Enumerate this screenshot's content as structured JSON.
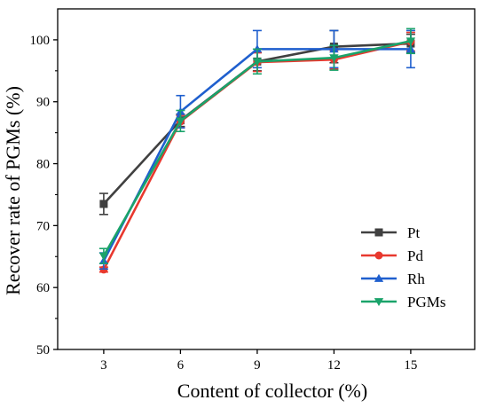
{
  "chart_data": {
    "type": "line",
    "title": "",
    "xlabel": "Content of collector (%)",
    "ylabel": "Recover rate of PGMs (%)",
    "x": [
      3,
      6,
      9,
      12,
      15
    ],
    "x_ticks": [
      "3",
      "6",
      "9",
      "12",
      "15"
    ],
    "y_ticks": [
      "50",
      "60",
      "70",
      "80",
      "90",
      "100"
    ],
    "xlim": [
      1.2,
      17.5
    ],
    "ylim": [
      50,
      105
    ],
    "grid": false,
    "legend_position": "right-center",
    "series": [
      {
        "name": "Pt",
        "color": "#404040",
        "marker": "square",
        "values": [
          73.5,
          87.0,
          96.5,
          98.9,
          99.4
        ],
        "errors": [
          1.7,
          1.0,
          1.5,
          2.6,
          1.5
        ]
      },
      {
        "name": "Pd",
        "color": "#e8382e",
        "marker": "circle",
        "values": [
          62.9,
          86.8,
          96.4,
          96.8,
          99.7
        ],
        "errors": [
          0.4,
          1.0,
          1.5,
          1.5,
          1.5
        ]
      },
      {
        "name": "Rh",
        "color": "#1f5fce",
        "marker": "triangle-up",
        "values": [
          64.3,
          88.4,
          98.5,
          98.5,
          98.5
        ],
        "errors": [
          1.3,
          2.6,
          3.0,
          3.0,
          3.0
        ]
      },
      {
        "name": "PGMs",
        "color": "#1aa36a",
        "marker": "triangle-down",
        "values": [
          65.1,
          86.9,
          96.5,
          97.1,
          99.8
        ],
        "errors": [
          1.2,
          1.7,
          2.0,
          2.0,
          2.0
        ]
      }
    ]
  }
}
